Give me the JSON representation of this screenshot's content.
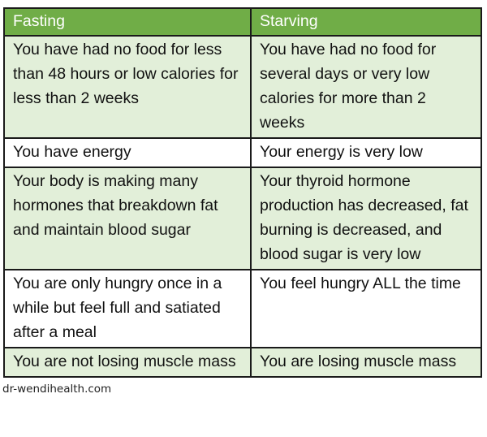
{
  "headers": [
    "Fasting",
    "Starving"
  ],
  "rows": [
    [
      "You have had no food for less than 48 hours or low calories for less than 2 weeks",
      "You have had no food for several days or very low calories for more than 2 weeks"
    ],
    [
      "You have energy",
      "Your energy is very low"
    ],
    [
      "Your body is making many hormones that breakdown fat and maintain blood sugar",
      "Your thyroid hormone production has decreased, fat burning is decreased, and blood sugar is very low"
    ],
    [
      "You are only hungry once in a while but feel full and satiated after a meal",
      "You feel hungry ALL the time"
    ],
    [
      "You are not losing muscle mass",
      "You are losing muscle mass"
    ]
  ],
  "colors": {
    "header": "#70ad47",
    "shaded_row": "#e2efd9"
  },
  "footer": "dr-wendihealth.com"
}
